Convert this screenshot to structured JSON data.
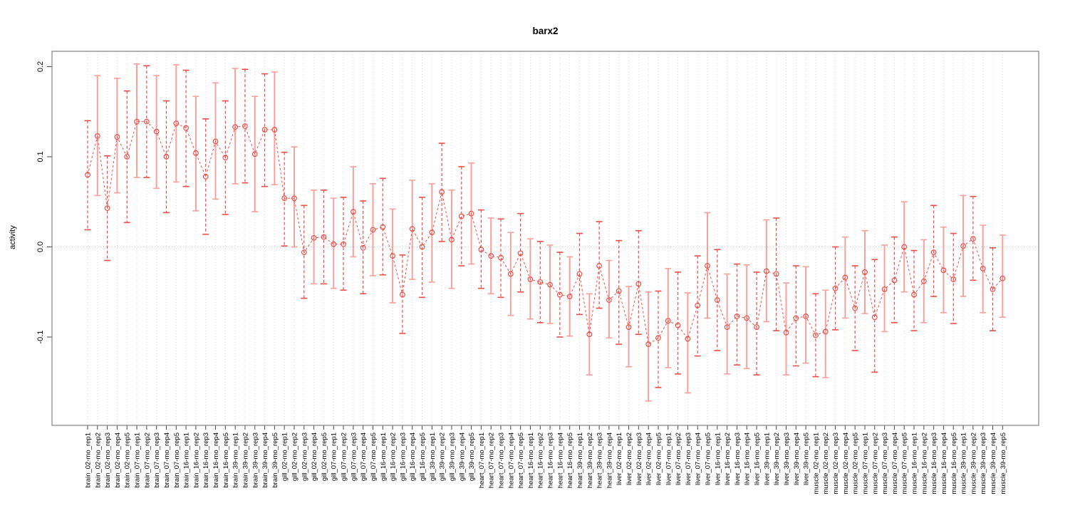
{
  "chart_data": {
    "type": "line",
    "subtype": "points-with-error-bars",
    "title": "barx2",
    "xlabel": "",
    "ylabel": "activity",
    "ylim": [
      -0.198,
      0.217
    ],
    "yticks": [
      -0.1,
      0.0,
      0.1,
      0.2
    ],
    "ytick_labels": [
      "-0.1",
      "0.0",
      "0.1",
      "0.2"
    ],
    "grid": "vertical-dotted-per-category-plus-zero-line",
    "legend": "none",
    "marker": "open-circle",
    "line_style": "dashed",
    "colors": {
      "series": "#ee4d48",
      "series_light": "#f8a09b",
      "gridline": "#dcdcdc",
      "zero_line": "#c9c9c9",
      "box_border": "#8a8a8a",
      "tick": "#444444",
      "text": "#000000",
      "background": "#ffffff"
    },
    "categories": [
      "brain_02-mo_rep1",
      "brain_02-mo_rep2",
      "brain_02-mo_rep3",
      "brain_02-mo_rep4",
      "brain_02-mo_rep5",
      "brain_07-mo_rep1",
      "brain_07-mo_rep2",
      "brain_07-mo_rep3",
      "brain_07-mo_rep4",
      "brain_07-mo_rep5",
      "brain_16-mo_rep1",
      "brain_16-mo_rep2",
      "brain_16-mo_rep3",
      "brain_16-mo_rep4",
      "brain_16-mo_rep5",
      "brain_39-mo_rep1",
      "brain_39-mo_rep2",
      "brain_39-mo_rep3",
      "brain_39-mo_rep4",
      "brain_39-mo_rep5",
      "gill_02-mo_rep1",
      "gill_02-mo_rep2",
      "gill_02-mo_rep3",
      "gill_02-mo_rep4",
      "gill_02-mo_rep5",
      "gill_07-mo_rep1",
      "gill_07-mo_rep2",
      "gill_07-mo_rep3",
      "gill_07-mo_rep4",
      "gill_07-mo_rep5",
      "gill_16-mo_rep1",
      "gill_16-mo_rep2",
      "gill_16-mo_rep3",
      "gill_16-mo_rep4",
      "gill_16-mo_rep5",
      "gill_39-mo_rep1",
      "gill_39-mo_rep2",
      "gill_39-mo_rep3",
      "gill_39-mo_rep4",
      "gill_39-mo_rep5",
      "heart_07-mo_rep1",
      "heart_07-mo_rep2",
      "heart_07-mo_rep3",
      "heart_07-mo_rep4",
      "heart_07-mo_rep5",
      "heart_16-mo_rep1",
      "heart_16-mo_rep2",
      "heart_16-mo_rep3",
      "heart_16-mo_rep4",
      "heart_16-mo_rep5",
      "heart_39-mo_rep1",
      "heart_39-mo_rep2",
      "heart_39-mo_rep3",
      "heart_39-mo_rep4",
      "liver_02-mo_rep1",
      "liver_02-mo_rep2",
      "liver_02-mo_rep3",
      "liver_02-mo_rep4",
      "liver_02-mo_rep5",
      "liver_07-mo_rep1",
      "liver_07-mo_rep2",
      "liver_07-mo_rep3",
      "liver_07-mo_rep4",
      "liver_07-mo_rep5",
      "liver_16-mo_rep1",
      "liver_16-mo_rep2",
      "liver_16-mo_rep3",
      "liver_16-mo_rep4",
      "liver_16-mo_rep5",
      "liver_39-mo_rep1",
      "liver_39-mo_rep2",
      "liver_39-mo_rep3",
      "liver_39-mo_rep4",
      "liver_39-mo_rep5",
      "muscle_02-mo_rep1",
      "muscle_02-mo_rep2",
      "muscle_02-mo_rep3",
      "muscle_02-mo_rep4",
      "muscle_02-mo_rep5",
      "muscle_07-mo_rep1",
      "muscle_07-mo_rep2",
      "muscle_07-mo_rep3",
      "muscle_07-mo_rep4",
      "muscle_07-mo_rep5",
      "muscle_16-mo_rep1",
      "muscle_16-mo_rep2",
      "muscle_16-mo_rep3",
      "muscle_16-mo_rep4",
      "muscle_16-mo_rep5",
      "muscle_39-mo_rep1",
      "muscle_39-mo_rep2",
      "muscle_39-mo_rep3",
      "muscle_39-mo_rep4",
      "muscle_39-mo_rep5"
    ],
    "values": [
      0.08,
      0.123,
      0.043,
      0.122,
      0.1,
      0.139,
      0.139,
      0.128,
      0.1,
      0.137,
      0.132,
      0.104,
      0.078,
      0.117,
      0.099,
      0.133,
      0.134,
      0.103,
      0.13,
      0.13,
      0.054,
      0.054,
      -0.006,
      0.01,
      0.011,
      0.003,
      0.003,
      0.039,
      -0.001,
      0.019,
      0.022,
      -0.01,
      -0.053,
      0.02,
      0.0,
      0.016,
      0.061,
      0.008,
      0.034,
      0.037,
      -0.003,
      -0.01,
      -0.012,
      -0.03,
      -0.007,
      -0.036,
      -0.039,
      -0.042,
      -0.053,
      -0.055,
      -0.03,
      -0.097,
      -0.021,
      -0.059,
      -0.049,
      -0.089,
      -0.041,
      -0.108,
      -0.101,
      -0.082,
      -0.087,
      -0.102,
      -0.065,
      -0.021,
      -0.059,
      -0.089,
      -0.077,
      -0.079,
      -0.089,
      -0.027,
      -0.03,
      -0.095,
      -0.079,
      -0.077,
      -0.098,
      -0.094,
      -0.046,
      -0.034,
      -0.068,
      -0.028,
      -0.078,
      -0.047,
      -0.037,
      0.0,
      -0.053,
      -0.038,
      -0.006,
      -0.026,
      -0.036,
      0.001,
      0.009,
      -0.024,
      -0.047,
      -0.035
    ],
    "error_low": [
      0.019,
      0.057,
      -0.015,
      0.06,
      0.027,
      0.077,
      0.077,
      0.065,
      0.038,
      0.072,
      0.067,
      0.04,
      0.014,
      0.053,
      0.036,
      0.07,
      0.071,
      0.039,
      0.067,
      0.069,
      0.001,
      0.0,
      -0.057,
      -0.041,
      -0.041,
      -0.046,
      -0.048,
      -0.011,
      -0.052,
      -0.032,
      -0.031,
      -0.062,
      -0.096,
      -0.036,
      -0.056,
      -0.039,
      0.006,
      -0.046,
      -0.021,
      -0.019,
      -0.046,
      -0.052,
      -0.056,
      -0.076,
      -0.05,
      -0.08,
      -0.084,
      -0.085,
      -0.1,
      -0.099,
      -0.075,
      -0.142,
      -0.068,
      -0.101,
      -0.108,
      -0.133,
      -0.097,
      -0.171,
      -0.156,
      -0.134,
      -0.141,
      -0.162,
      -0.121,
      -0.079,
      -0.115,
      -0.141,
      -0.131,
      -0.135,
      -0.142,
      -0.083,
      -0.093,
      -0.142,
      -0.132,
      -0.129,
      -0.144,
      -0.145,
      -0.092,
      -0.079,
      -0.115,
      -0.074,
      -0.139,
      -0.094,
      -0.084,
      -0.05,
      -0.093,
      -0.084,
      -0.055,
      -0.073,
      -0.085,
      -0.055,
      -0.037,
      -0.073,
      -0.093,
      -0.078
    ],
    "error_high": [
      0.14,
      0.19,
      0.101,
      0.187,
      0.173,
      0.203,
      0.201,
      0.19,
      0.162,
      0.202,
      0.196,
      0.167,
      0.142,
      0.182,
      0.162,
      0.198,
      0.197,
      0.167,
      0.192,
      0.194,
      0.105,
      0.111,
      0.046,
      0.063,
      0.063,
      0.054,
      0.055,
      0.089,
      0.051,
      0.07,
      0.076,
      0.042,
      -0.009,
      0.074,
      0.055,
      0.07,
      0.115,
      0.063,
      0.089,
      0.093,
      0.041,
      0.032,
      0.031,
      0.016,
      0.037,
      0.009,
      0.006,
      0.002,
      -0.006,
      -0.011,
      0.015,
      -0.052,
      0.028,
      -0.015,
      0.007,
      -0.044,
      0.018,
      -0.05,
      -0.049,
      -0.024,
      -0.028,
      -0.051,
      -0.01,
      0.038,
      -0.003,
      -0.03,
      -0.019,
      -0.02,
      -0.028,
      0.03,
      0.032,
      -0.04,
      -0.021,
      -0.022,
      -0.052,
      -0.048,
      0.0,
      0.011,
      -0.021,
      0.018,
      -0.014,
      0.002,
      0.011,
      0.05,
      -0.004,
      0.008,
      0.046,
      0.022,
      0.015,
      0.057,
      0.056,
      0.024,
      -0.001,
      0.013
    ]
  }
}
